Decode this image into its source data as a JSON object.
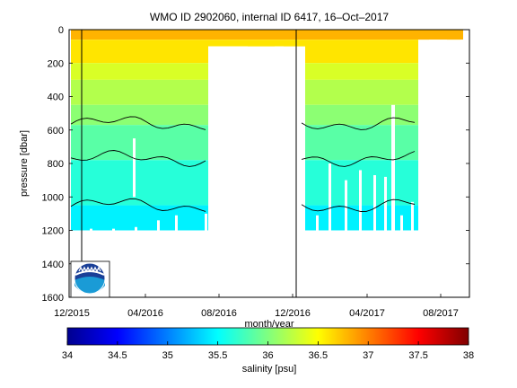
{
  "chart_data": {
    "type": "heatmap",
    "title": "WMO ID 2902060, internal ID 6417, 16–Oct–2017",
    "xlabel": "month/year",
    "ylabel": "pressure [dbar]",
    "x_tick_labels": [
      "12/2015",
      "04/2016",
      "08/2016",
      "12/2016",
      "04/2017",
      "08/2017"
    ],
    "y_tick_values": [
      0,
      200,
      400,
      600,
      800,
      1000,
      1200,
      1400,
      1600
    ],
    "ylim": [
      1600,
      0
    ],
    "y_reversed": true,
    "colorbar": {
      "label": "salinity [psu]",
      "range": [
        34,
        38
      ],
      "tick_labels": [
        "34",
        "34.5",
        "35",
        "35.5",
        "36",
        "36.5",
        "37",
        "37.5",
        "38"
      ],
      "colormap": "jet"
    },
    "salinity_layers": [
      {
        "top": 0,
        "bottom": 60,
        "salinity": 36.8
      },
      {
        "top": 60,
        "bottom": 200,
        "salinity": 36.6
      },
      {
        "top": 200,
        "bottom": 300,
        "salinity": 36.35
      },
      {
        "top": 300,
        "bottom": 450,
        "salinity": 36.2
      },
      {
        "top": 450,
        "bottom": 570,
        "salinity": 36.05
      },
      {
        "top": 570,
        "bottom": 780,
        "salinity": 35.85
      },
      {
        "top": 780,
        "bottom": 1050,
        "salinity": 35.65
      },
      {
        "top": 1050,
        "bottom": 1200,
        "salinity": 35.45
      }
    ],
    "black_contours_dbar": [
      560,
      770,
      1050
    ],
    "vertical_markers": [
      "12/2015",
      "12/2016"
    ],
    "logo": "noaa-logo"
  }
}
